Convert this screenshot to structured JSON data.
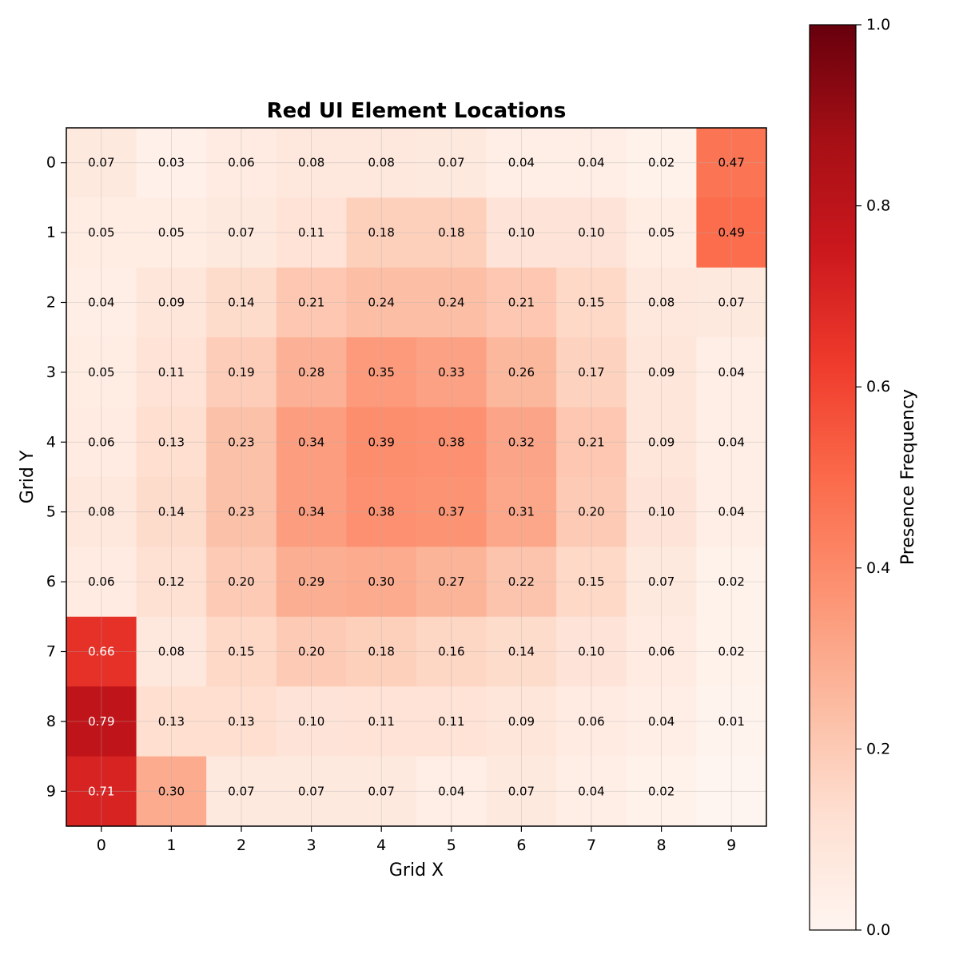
{
  "chart_data": {
    "type": "heatmap",
    "title": "Red UI Element Locations",
    "xlabel": "Grid X",
    "ylabel": "Grid Y",
    "x_categories": [
      "0",
      "1",
      "2",
      "3",
      "4",
      "5",
      "6",
      "7",
      "8",
      "9"
    ],
    "y_categories": [
      "0",
      "1",
      "2",
      "3",
      "4",
      "5",
      "6",
      "7",
      "8",
      "9"
    ],
    "values": [
      [
        0.07,
        0.03,
        0.06,
        0.08,
        0.08,
        0.07,
        0.04,
        0.04,
        0.02,
        0.47
      ],
      [
        0.05,
        0.05,
        0.07,
        0.11,
        0.18,
        0.18,
        0.1,
        0.1,
        0.05,
        0.49
      ],
      [
        0.04,
        0.09,
        0.14,
        0.21,
        0.24,
        0.24,
        0.21,
        0.15,
        0.08,
        0.07
      ],
      [
        0.05,
        0.11,
        0.19,
        0.28,
        0.35,
        0.33,
        0.26,
        0.17,
        0.09,
        0.04
      ],
      [
        0.06,
        0.13,
        0.23,
        0.34,
        0.39,
        0.38,
        0.32,
        0.21,
        0.09,
        0.04
      ],
      [
        0.08,
        0.14,
        0.23,
        0.34,
        0.38,
        0.37,
        0.31,
        0.2,
        0.1,
        0.04
      ],
      [
        0.06,
        0.12,
        0.2,
        0.29,
        0.3,
        0.27,
        0.22,
        0.15,
        0.07,
        0.02
      ],
      [
        0.66,
        0.08,
        0.15,
        0.2,
        0.18,
        0.16,
        0.14,
        0.1,
        0.06,
        0.02
      ],
      [
        0.79,
        0.13,
        0.13,
        0.1,
        0.11,
        0.11,
        0.09,
        0.06,
        0.04,
        0.01
      ],
      [
        0.71,
        0.3,
        0.07,
        0.07,
        0.07,
        0.04,
        0.07,
        0.04,
        0.02,
        0.0
      ]
    ],
    "value_labels": [
      [
        "0.07",
        "0.03",
        "0.06",
        "0.08",
        "0.08",
        "0.07",
        "0.04",
        "0.04",
        "0.02",
        "0.47"
      ],
      [
        "0.05",
        "0.05",
        "0.07",
        "0.11",
        "0.18",
        "0.18",
        "0.10",
        "0.10",
        "0.05",
        "0.49"
      ],
      [
        "0.04",
        "0.09",
        "0.14",
        "0.21",
        "0.24",
        "0.24",
        "0.21",
        "0.15",
        "0.08",
        "0.07"
      ],
      [
        "0.05",
        "0.11",
        "0.19",
        "0.28",
        "0.35",
        "0.33",
        "0.26",
        "0.17",
        "0.09",
        "0.04"
      ],
      [
        "0.06",
        "0.13",
        "0.23",
        "0.34",
        "0.39",
        "0.38",
        "0.32",
        "0.21",
        "0.09",
        "0.04"
      ],
      [
        "0.08",
        "0.14",
        "0.23",
        "0.34",
        "0.38",
        "0.37",
        "0.31",
        "0.20",
        "0.10",
        "0.04"
      ],
      [
        "0.06",
        "0.12",
        "0.20",
        "0.29",
        "0.30",
        "0.27",
        "0.22",
        "0.15",
        "0.07",
        "0.02"
      ],
      [
        "0.66",
        "0.08",
        "0.15",
        "0.20",
        "0.18",
        "0.16",
        "0.14",
        "0.10",
        "0.06",
        "0.02"
      ],
      [
        "0.79",
        "0.13",
        "0.13",
        "0.10",
        "0.11",
        "0.11",
        "0.09",
        "0.06",
        "0.04",
        "0.01"
      ],
      [
        "0.71",
        "0.30",
        "0.07",
        "0.07",
        "0.07",
        "0.04",
        "0.07",
        "0.04",
        "0.02",
        ""
      ]
    ],
    "colorbar": {
      "label": "Presence Frequency",
      "range": [
        0.0,
        1.0
      ],
      "ticks": [
        "0.0",
        "0.2",
        "0.4",
        "0.6",
        "0.8",
        "1.0"
      ],
      "colormap": "Reds",
      "color_stops": [
        "#fff5f0",
        "#fee0d2",
        "#fcbba1",
        "#fc9272",
        "#fb6a4a",
        "#ef3b2c",
        "#cb181d",
        "#a50f15",
        "#67000d"
      ]
    },
    "grid": true,
    "light_text_threshold": 0.6
  }
}
